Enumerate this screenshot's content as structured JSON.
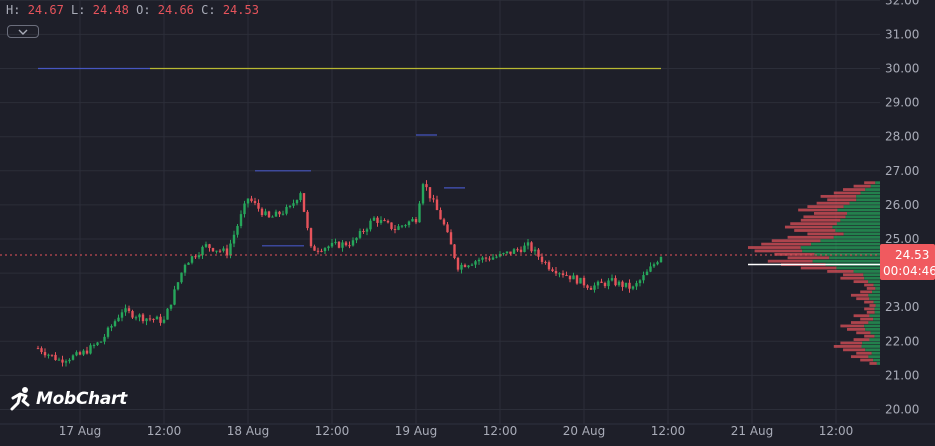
{
  "ohlc": {
    "h_label": "H:",
    "h": "24.67",
    "l_label": "L:",
    "l": "24.48",
    "o_label": "O:",
    "o": "24.66",
    "c_label": "C:",
    "c": "24.53"
  },
  "brand": {
    "name": "MobChart"
  },
  "price_tag": {
    "price": "24.53",
    "countdown": "00:04:46"
  },
  "colors": {
    "background": "#1e1f29",
    "grid": "#2c2e39",
    "up": "#26a65b",
    "down": "#e6535b",
    "price_line": "#e6535b",
    "level_yellow": "#c8c832",
    "level_blue": "#4a5bd0",
    "axis_text": "#a9acb8"
  },
  "chart_data": {
    "type": "candlestick",
    "title": "",
    "xlabel": "",
    "ylabel": "",
    "ylim": [
      19.8,
      32.2
    ],
    "y_ticks": [
      "20.00",
      "21.00",
      "22.00",
      "23.00",
      "24.00",
      "25.00",
      "26.00",
      "27.00",
      "28.00",
      "29.00",
      "30.00",
      "31.00",
      "32.00"
    ],
    "x_ticks": [
      "17 Aug",
      "12:00",
      "18 Aug",
      "12:00",
      "19 Aug",
      "12:00",
      "20 Aug",
      "12:00",
      "21 Aug",
      "12:00"
    ],
    "grid": true,
    "price_path_anchors": [
      [
        "16 Aug 18:00",
        21.8
      ],
      [
        "16 Aug 21:00",
        21.45
      ],
      [
        "17 Aug 00:00",
        21.6
      ],
      [
        "17 Aug 03:00",
        22.0
      ],
      [
        "17 Aug 06:00",
        22.9
      ],
      [
        "17 Aug 09:00",
        22.7
      ],
      [
        "17 Aug 12:00",
        22.6
      ],
      [
        "17 Aug 15:00",
        24.3
      ],
      [
        "17 Aug 18:00",
        24.8
      ],
      [
        "17 Aug 21:00",
        24.6
      ],
      [
        "18 Aug 00:00",
        26.2
      ],
      [
        "18 Aug 03:00",
        25.6
      ],
      [
        "18 Aug 06:00",
        25.9
      ],
      [
        "18 Aug 07:30",
        26.4
      ],
      [
        "18 Aug 09:00",
        24.7
      ],
      [
        "18 Aug 12:00",
        24.8
      ],
      [
        "18 Aug 15:00",
        24.9
      ],
      [
        "18 Aug 18:00",
        25.6
      ],
      [
        "18 Aug 21:00",
        25.3
      ],
      [
        "19 Aug 00:00",
        25.6
      ],
      [
        "19 Aug 01:00",
        26.7
      ],
      [
        "19 Aug 04:00",
        25.4
      ],
      [
        "19 Aug 06:00",
        24.2
      ],
      [
        "19 Aug 09:00",
        24.4
      ],
      [
        "19 Aug 12:00",
        24.5
      ],
      [
        "19 Aug 16:00",
        24.8
      ],
      [
        "19 Aug 19:00",
        24.2
      ],
      [
        "19 Aug 22:00",
        23.9
      ],
      [
        "20 Aug 01:00",
        23.6
      ],
      [
        "20 Aug 04:00",
        23.75
      ],
      [
        "20 Aug 07:00",
        23.55
      ],
      [
        "20 Aug 09:00",
        24.0
      ],
      [
        "20 Aug 11:00",
        24.53
      ]
    ],
    "levels": [
      {
        "color": "yellow",
        "price": 30.0,
        "from": "17 Aug 10:00",
        "to": "20 Aug 11:00"
      },
      {
        "color": "blue",
        "price": 30.0,
        "from": "16 Aug 18:00",
        "to": "17 Aug 10:00"
      },
      {
        "color": "blue",
        "price": 27.0,
        "from": "18 Aug 01:00",
        "to": "18 Aug 09:00"
      },
      {
        "color": "blue",
        "price": 28.05,
        "from": "19 Aug 00:00",
        "to": "19 Aug 03:00"
      },
      {
        "color": "blue",
        "price": 26.5,
        "from": "19 Aug 04:00",
        "to": "19 Aug 07:00"
      },
      {
        "color": "blue",
        "price": 24.8,
        "from": "18 Aug 02:00",
        "to": "18 Aug 08:00"
      }
    ],
    "current_price": 24.53,
    "volume_profile": {
      "price_min": 21.3,
      "price_max": 26.7,
      "bin_size": 0.1,
      "relative_volume": [
        0.08,
        0.15,
        0.22,
        0.18,
        0.28,
        0.35,
        0.3,
        0.2,
        0.12,
        0.18,
        0.25,
        0.3,
        0.22,
        0.15,
        0.2,
        0.1,
        0.12,
        0.08,
        0.12,
        0.18,
        0.22,
        0.15,
        0.1,
        0.12,
        0.2,
        0.3,
        0.28,
        0.4,
        0.6,
        0.75,
        0.85,
        0.7,
        0.8,
        0.95,
        1.0,
        0.9,
        0.82,
        0.7,
        0.55,
        0.65,
        0.72,
        0.68,
        0.6,
        0.58,
        0.5,
        0.62,
        0.55,
        0.48,
        0.4,
        0.45,
        0.35,
        0.28,
        0.2,
        0.12
      ],
      "buy_share": [
        0.3,
        0.35,
        0.4,
        0.35,
        0.4,
        0.4,
        0.45,
        0.4,
        0.35,
        0.4,
        0.45,
        0.4,
        0.4,
        0.35,
        0.4,
        0.4,
        0.35,
        0.4,
        0.4,
        0.45,
        0.4,
        0.4,
        0.35,
        0.4,
        0.45,
        0.4,
        0.45,
        0.5,
        0.55,
        0.55,
        0.6,
        0.55,
        0.62,
        0.62,
        0.6,
        0.58,
        0.55,
        0.5,
        0.5,
        0.52,
        0.5,
        0.48,
        0.5,
        0.45,
        0.5,
        0.52,
        0.5,
        0.48,
        0.45,
        0.4,
        0.42,
        0.4,
        0.35,
        0.3
      ]
    }
  }
}
